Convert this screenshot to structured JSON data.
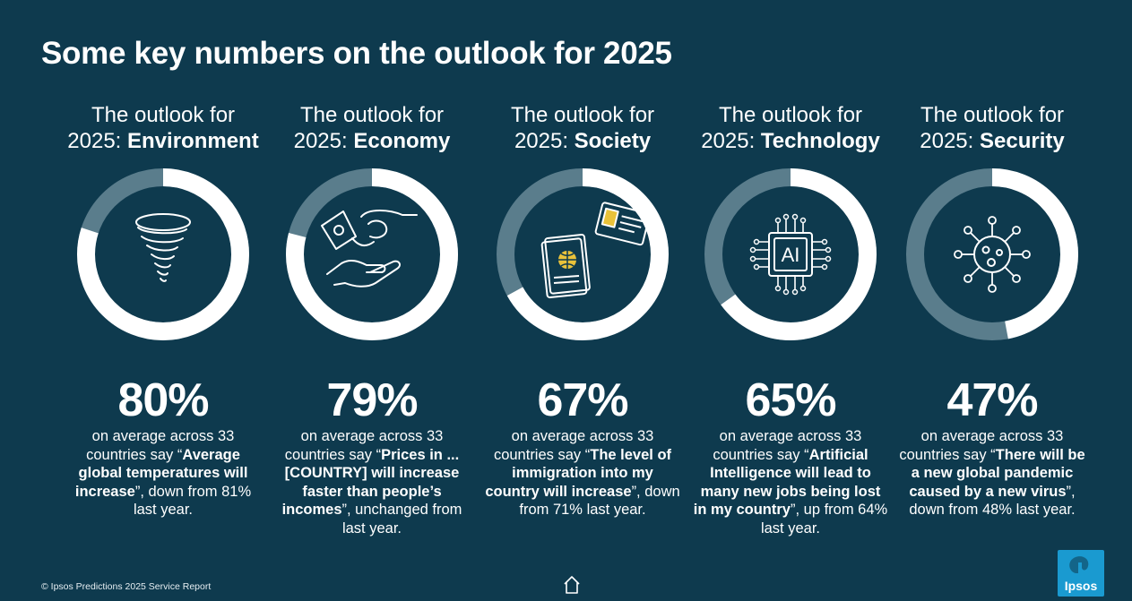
{
  "title": "Some key numbers on the outlook for 2025",
  "colors": {
    "background": "#0e3a4e",
    "ring_filled": "#ffffff",
    "ring_remaining": "#5a7d8c",
    "logo": "#1a9ad0"
  },
  "chart_data": {
    "type": "pie",
    "variant": "donut",
    "categories": [
      "Environment",
      "Economy",
      "Society",
      "Technology",
      "Security"
    ],
    "values": [
      80,
      79,
      67,
      65,
      47
    ],
    "unit": "%",
    "items": [
      {
        "heading_top": "The outlook for",
        "heading_prefix": "2025: ",
        "heading_bold": "Environment",
        "icon": "tornado-icon",
        "percent_label": "80%",
        "value": 80,
        "desc_before": "on average across 33 countries say “",
        "desc_bold": "Average global temperatures will increase",
        "desc_after": "”, down from 81% last year."
      },
      {
        "heading_top": "The outlook for",
        "heading_prefix": "2025: ",
        "heading_bold": "Economy",
        "icon": "money-hands-icon",
        "percent_label": "79%",
        "value": 79,
        "desc_before": "on average across 33 countries say “",
        "desc_bold": "Prices in ... [COUNTRY] will increase faster than people’s incomes",
        "desc_after": "”, unchanged from last year."
      },
      {
        "heading_top": "The outlook for",
        "heading_prefix": "2025: ",
        "heading_bold": "Society",
        "icon": "passport-icon",
        "percent_label": "67%",
        "value": 67,
        "desc_before": "on average across 33 countries say “",
        "desc_bold": "The level of immigration into my country will increase",
        "desc_after": "”, down from 71% last year."
      },
      {
        "heading_top": "The outlook for",
        "heading_prefix": "2025: ",
        "heading_bold": "Technology",
        "icon": "ai-chip-icon",
        "chip_text": "AI",
        "percent_label": "65%",
        "value": 65,
        "desc_before": "on average across 33 countries say “",
        "desc_bold": "Artificial Intelligence will lead to many new jobs being lost in my country",
        "desc_after": "”, up from 64% last year."
      },
      {
        "heading_top": "The outlook for",
        "heading_prefix": "2025: ",
        "heading_bold": "Security",
        "icon": "virus-icon",
        "percent_label": "47%",
        "value": 47,
        "desc_before": "on average across 33 countries say “",
        "desc_bold": "There will be a new global pandemic caused by a new virus",
        "desc_after": "”, down from 48% last year."
      }
    ]
  },
  "footer": {
    "copyright": "© Ipsos Predictions 2025 Service Report",
    "home_icon": "home-icon",
    "logo_text": "Ipsos"
  }
}
